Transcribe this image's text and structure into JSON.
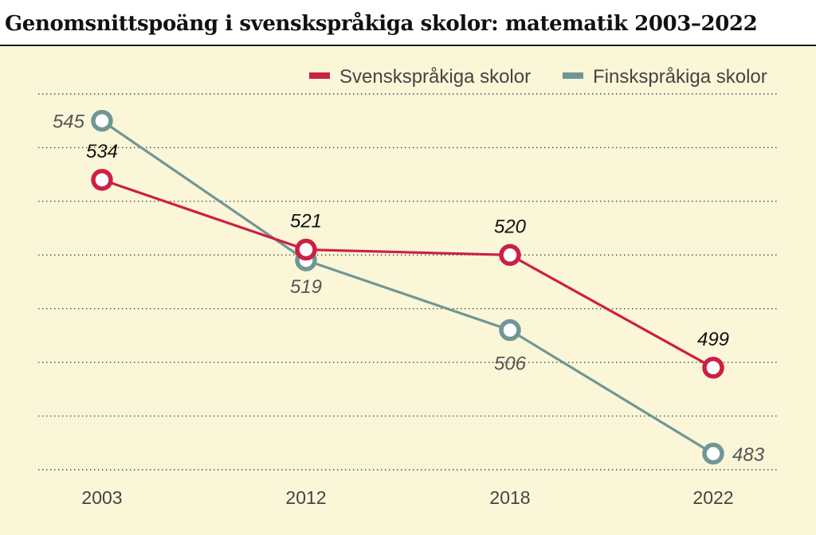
{
  "chart_data": {
    "type": "line",
    "title": "Genomsnittspoäng i svenskspråkiga skolor: matematik 2003–2022",
    "categories": [
      "2003",
      "2012",
      "2018",
      "2022"
    ],
    "series": [
      {
        "name": "Svenskspråkiga skolor",
        "values": [
          534,
          521,
          520,
          499
        ],
        "color": "#cc1f45"
      },
      {
        "name": "Finskspråkiga skolor",
        "values": [
          545,
          519,
          506,
          483
        ],
        "color": "#6f9797"
      }
    ],
    "ylim": [
      480,
      550
    ],
    "grid": true,
    "legend_position": "top-right",
    "data_labels": true,
    "xlabel": "",
    "ylabel": ""
  }
}
